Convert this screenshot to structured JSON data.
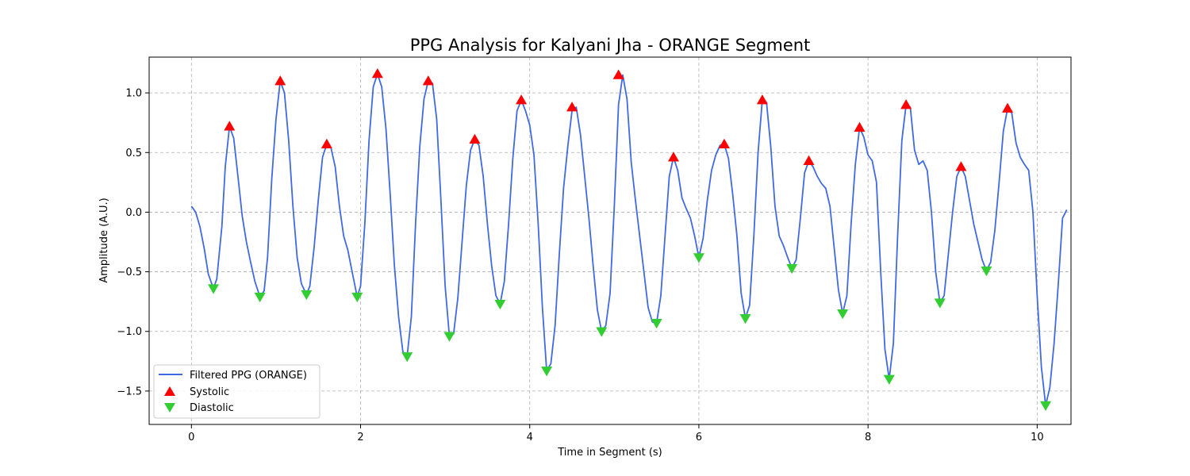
{
  "chart_data": {
    "type": "line",
    "title": "PPG Analysis for Kalyani Jha - ORANGE Segment",
    "xlabel": "Time in Segment (s)",
    "ylabel": "Amplitude (A.U.)",
    "xlim": [
      -0.5,
      10.4
    ],
    "ylim": [
      -1.78,
      1.3
    ],
    "x_ticks": [
      0,
      2,
      4,
      6,
      8,
      10
    ],
    "y_ticks": [
      1.0,
      0.5,
      0.0,
      -0.5,
      -1.0,
      -1.5
    ],
    "x_tick_labels": [
      "0",
      "2",
      "4",
      "6",
      "8",
      "10"
    ],
    "y_tick_labels": [
      "1.0",
      "0.5",
      "0.0",
      "−0.5",
      "−1.0",
      "−1.5"
    ],
    "grid": true,
    "legend_position": "lower-left",
    "series": [
      {
        "name": "Filtered PPG (ORANGE)",
        "kind": "line",
        "color": "#4169E1",
        "points": [
          [
            0.0,
            0.05
          ],
          [
            0.05,
            0.0
          ],
          [
            0.1,
            -0.12
          ],
          [
            0.15,
            -0.3
          ],
          [
            0.2,
            -0.52
          ],
          [
            0.26,
            -0.64
          ],
          [
            0.3,
            -0.56
          ],
          [
            0.36,
            -0.12
          ],
          [
            0.4,
            0.38
          ],
          [
            0.45,
            0.72
          ],
          [
            0.5,
            0.62
          ],
          [
            0.55,
            0.3
          ],
          [
            0.6,
            -0.03
          ],
          [
            0.65,
            -0.25
          ],
          [
            0.7,
            -0.42
          ],
          [
            0.75,
            -0.58
          ],
          [
            0.81,
            -0.71
          ],
          [
            0.86,
            -0.66
          ],
          [
            0.9,
            -0.38
          ],
          [
            0.95,
            0.28
          ],
          [
            1.0,
            0.78
          ],
          [
            1.05,
            1.1
          ],
          [
            1.1,
            1.0
          ],
          [
            1.15,
            0.6
          ],
          [
            1.2,
            0.05
          ],
          [
            1.25,
            -0.38
          ],
          [
            1.3,
            -0.6
          ],
          [
            1.36,
            -0.69
          ],
          [
            1.4,
            -0.62
          ],
          [
            1.45,
            -0.3
          ],
          [
            1.5,
            0.1
          ],
          [
            1.55,
            0.46
          ],
          [
            1.6,
            0.57
          ],
          [
            1.65,
            0.54
          ],
          [
            1.7,
            0.38
          ],
          [
            1.75,
            0.05
          ],
          [
            1.8,
            -0.2
          ],
          [
            1.85,
            -0.32
          ],
          [
            1.9,
            -0.5
          ],
          [
            1.96,
            -0.71
          ],
          [
            2.0,
            -0.62
          ],
          [
            2.05,
            -0.1
          ],
          [
            2.1,
            0.6
          ],
          [
            2.15,
            1.05
          ],
          [
            2.2,
            1.16
          ],
          [
            2.25,
            1.05
          ],
          [
            2.3,
            0.7
          ],
          [
            2.35,
            0.15
          ],
          [
            2.4,
            -0.45
          ],
          [
            2.45,
            -0.88
          ],
          [
            2.5,
            -1.17
          ],
          [
            2.55,
            -1.21
          ],
          [
            2.6,
            -0.88
          ],
          [
            2.65,
            -0.1
          ],
          [
            2.7,
            0.55
          ],
          [
            2.75,
            0.95
          ],
          [
            2.8,
            1.1
          ],
          [
            2.85,
            1.08
          ],
          [
            2.9,
            0.78
          ],
          [
            2.95,
            0.1
          ],
          [
            3.0,
            -0.62
          ],
          [
            3.05,
            -1.04
          ],
          [
            3.1,
            -1.02
          ],
          [
            3.15,
            -0.72
          ],
          [
            3.2,
            -0.25
          ],
          [
            3.25,
            0.22
          ],
          [
            3.3,
            0.52
          ],
          [
            3.35,
            0.61
          ],
          [
            3.4,
            0.56
          ],
          [
            3.45,
            0.3
          ],
          [
            3.5,
            -0.1
          ],
          [
            3.55,
            -0.45
          ],
          [
            3.6,
            -0.7
          ],
          [
            3.65,
            -0.77
          ],
          [
            3.7,
            -0.58
          ],
          [
            3.75,
            -0.1
          ],
          [
            3.8,
            0.45
          ],
          [
            3.85,
            0.85
          ],
          [
            3.9,
            0.94
          ],
          [
            3.95,
            0.85
          ],
          [
            4.0,
            0.73
          ],
          [
            4.05,
            0.48
          ],
          [
            4.1,
            -0.1
          ],
          [
            4.15,
            -0.8
          ],
          [
            4.2,
            -1.33
          ],
          [
            4.25,
            -1.27
          ],
          [
            4.3,
            -0.95
          ],
          [
            4.35,
            -0.35
          ],
          [
            4.4,
            0.2
          ],
          [
            4.45,
            0.55
          ],
          [
            4.5,
            0.85
          ],
          [
            4.55,
            0.88
          ],
          [
            4.6,
            0.65
          ],
          [
            4.65,
            0.3
          ],
          [
            4.7,
            -0.05
          ],
          [
            4.75,
            -0.45
          ],
          [
            4.8,
            -0.82
          ],
          [
            4.85,
            -1.0
          ],
          [
            4.9,
            -0.95
          ],
          [
            4.95,
            -0.68
          ],
          [
            5.0,
            0.05
          ],
          [
            5.05,
            0.9
          ],
          [
            5.1,
            1.15
          ],
          [
            5.15,
            0.95
          ],
          [
            5.2,
            0.42
          ],
          [
            5.25,
            0.1
          ],
          [
            5.3,
            -0.2
          ],
          [
            5.35,
            -0.5
          ],
          [
            5.4,
            -0.8
          ],
          [
            5.45,
            -0.92
          ],
          [
            5.5,
            -0.93
          ],
          [
            5.55,
            -0.7
          ],
          [
            5.6,
            -0.2
          ],
          [
            5.65,
            0.3
          ],
          [
            5.7,
            0.46
          ],
          [
            5.75,
            0.35
          ],
          [
            5.8,
            0.12
          ],
          [
            5.85,
            0.03
          ],
          [
            5.9,
            -0.05
          ],
          [
            5.95,
            -0.2
          ],
          [
            6.0,
            -0.38
          ],
          [
            6.05,
            -0.22
          ],
          [
            6.1,
            0.1
          ],
          [
            6.15,
            0.35
          ],
          [
            6.2,
            0.48
          ],
          [
            6.25,
            0.56
          ],
          [
            6.3,
            0.57
          ],
          [
            6.35,
            0.45
          ],
          [
            6.4,
            0.15
          ],
          [
            6.45,
            -0.2
          ],
          [
            6.5,
            -0.68
          ],
          [
            6.55,
            -0.89
          ],
          [
            6.6,
            -0.78
          ],
          [
            6.65,
            -0.2
          ],
          [
            6.7,
            0.5
          ],
          [
            6.75,
            0.94
          ],
          [
            6.8,
            0.92
          ],
          [
            6.85,
            0.55
          ],
          [
            6.9,
            0.05
          ],
          [
            6.95,
            -0.2
          ],
          [
            7.0,
            -0.28
          ],
          [
            7.05,
            -0.38
          ],
          [
            7.1,
            -0.47
          ],
          [
            7.15,
            -0.4
          ],
          [
            7.2,
            -0.05
          ],
          [
            7.25,
            0.33
          ],
          [
            7.3,
            0.43
          ],
          [
            7.35,
            0.38
          ],
          [
            7.4,
            0.3
          ],
          [
            7.45,
            0.24
          ],
          [
            7.5,
            0.2
          ],
          [
            7.55,
            0.05
          ],
          [
            7.6,
            -0.3
          ],
          [
            7.65,
            -0.65
          ],
          [
            7.7,
            -0.85
          ],
          [
            7.75,
            -0.7
          ],
          [
            7.8,
            -0.1
          ],
          [
            7.85,
            0.4
          ],
          [
            7.9,
            0.71
          ],
          [
            7.95,
            0.63
          ],
          [
            8.0,
            0.48
          ],
          [
            8.05,
            0.43
          ],
          [
            8.1,
            0.25
          ],
          [
            8.15,
            -0.5
          ],
          [
            8.2,
            -1.15
          ],
          [
            8.25,
            -1.4
          ],
          [
            8.3,
            -1.1
          ],
          [
            8.35,
            -0.2
          ],
          [
            8.4,
            0.6
          ],
          [
            8.45,
            0.9
          ],
          [
            8.5,
            0.88
          ],
          [
            8.55,
            0.52
          ],
          [
            8.6,
            0.4
          ],
          [
            8.65,
            0.43
          ],
          [
            8.7,
            0.35
          ],
          [
            8.75,
            0.0
          ],
          [
            8.8,
            -0.5
          ],
          [
            8.85,
            -0.76
          ],
          [
            8.9,
            -0.7
          ],
          [
            8.95,
            -0.35
          ],
          [
            9.0,
            0.0
          ],
          [
            9.05,
            0.3
          ],
          [
            9.1,
            0.38
          ],
          [
            9.15,
            0.3
          ],
          [
            9.2,
            0.1
          ],
          [
            9.25,
            -0.1
          ],
          [
            9.3,
            -0.25
          ],
          [
            9.35,
            -0.4
          ],
          [
            9.4,
            -0.49
          ],
          [
            9.45,
            -0.42
          ],
          [
            9.5,
            -0.15
          ],
          [
            9.55,
            0.25
          ],
          [
            9.6,
            0.68
          ],
          [
            9.65,
            0.87
          ],
          [
            9.7,
            0.83
          ],
          [
            9.75,
            0.58
          ],
          [
            9.8,
            0.46
          ],
          [
            9.85,
            0.4
          ],
          [
            9.9,
            0.35
          ],
          [
            9.95,
            0.0
          ],
          [
            10.0,
            -0.7
          ],
          [
            10.05,
            -1.3
          ],
          [
            10.1,
            -1.62
          ],
          [
            10.15,
            -1.47
          ],
          [
            10.2,
            -1.1
          ],
          [
            10.25,
            -0.6
          ],
          [
            10.3,
            -0.05
          ],
          [
            10.35,
            0.02
          ]
        ]
      },
      {
        "name": "Systolic",
        "kind": "marker-up",
        "color": "#FF0000",
        "points": [
          [
            0.45,
            0.72
          ],
          [
            1.05,
            1.1
          ],
          [
            1.6,
            0.57
          ],
          [
            2.2,
            1.16
          ],
          [
            2.8,
            1.1
          ],
          [
            3.35,
            0.61
          ],
          [
            3.9,
            0.94
          ],
          [
            4.5,
            0.88
          ],
          [
            5.05,
            1.15
          ],
          [
            5.7,
            0.46
          ],
          [
            6.3,
            0.57
          ],
          [
            6.75,
            0.94
          ],
          [
            7.3,
            0.43
          ],
          [
            7.9,
            0.71
          ],
          [
            8.45,
            0.9
          ],
          [
            9.1,
            0.38
          ],
          [
            9.65,
            0.87
          ]
        ]
      },
      {
        "name": "Diastolic",
        "kind": "marker-down",
        "color": "#32CD32",
        "points": [
          [
            0.26,
            -0.64
          ],
          [
            0.81,
            -0.71
          ],
          [
            1.36,
            -0.69
          ],
          [
            1.96,
            -0.71
          ],
          [
            2.55,
            -1.21
          ],
          [
            3.05,
            -1.04
          ],
          [
            3.65,
            -0.77
          ],
          [
            4.2,
            -1.33
          ],
          [
            4.85,
            -1.0
          ],
          [
            5.5,
            -0.93
          ],
          [
            6.0,
            -0.38
          ],
          [
            6.55,
            -0.89
          ],
          [
            7.1,
            -0.47
          ],
          [
            7.7,
            -0.85
          ],
          [
            8.25,
            -1.4
          ],
          [
            8.85,
            -0.76
          ],
          [
            9.4,
            -0.49
          ],
          [
            10.1,
            -1.62
          ]
        ]
      }
    ]
  }
}
